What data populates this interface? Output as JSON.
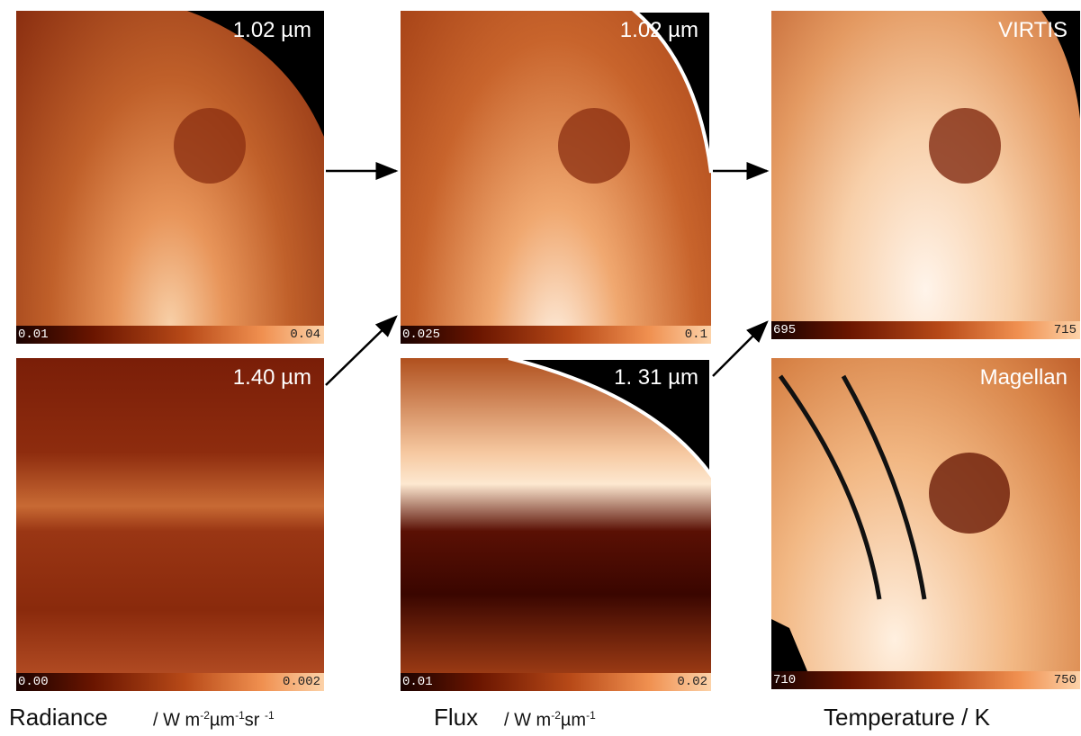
{
  "panels": [
    {
      "label": "1.02 µm",
      "cbar_min": "0.01",
      "cbar_max": "0.04"
    },
    {
      "label": "1.40 µm",
      "cbar_min": "0.00",
      "cbar_max": "0.002"
    },
    {
      "label": "1.02 µm",
      "cbar_min": "0.025",
      "cbar_max": "0.1"
    },
    {
      "label": "1. 31 µm",
      "cbar_min": "0.01",
      "cbar_max": "0.02"
    },
    {
      "label": "VIRTIS",
      "cbar_min": "695",
      "cbar_max": "715"
    },
    {
      "label": "Magellan",
      "cbar_min": "710",
      "cbar_max": "750"
    }
  ],
  "captions": [
    {
      "name": "Radiance",
      "unit": [
        "/ W ",
        "m",
        "-2",
        "µm",
        "-1",
        "sr ",
        "-1"
      ]
    },
    {
      "name": "Flux",
      "unit": [
        "/ W m",
        "-2",
        "µm",
        "-1"
      ]
    },
    {
      "name": "Temperature / K"
    }
  ]
}
